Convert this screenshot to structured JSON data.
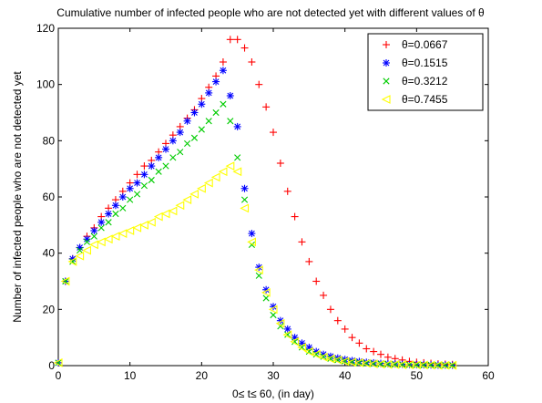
{
  "chart_data": {
    "type": "scatter",
    "title": "Cumulative number of infected people who are not detected yet with different values of θ",
    "xlabel": "0≤ t≤ 60, (in day)",
    "ylabel": "Number of infected people who are not detected yet",
    "xlim": [
      0,
      60
    ],
    "ylim": [
      0,
      120
    ],
    "xticks": [
      0,
      10,
      20,
      30,
      40,
      50,
      60
    ],
    "yticks": [
      0,
      20,
      40,
      60,
      80,
      100,
      120
    ],
    "grid": false,
    "legend_position": "top-right",
    "series": [
      {
        "name": "θ=0.0667",
        "marker": "plus",
        "color": "#ff0000",
        "x": [
          0,
          1,
          2,
          3,
          4,
          5,
          6,
          7,
          8,
          9,
          10,
          11,
          12,
          13,
          14,
          15,
          16,
          17,
          18,
          19,
          20,
          21,
          22,
          23,
          24,
          25,
          26,
          27,
          28,
          29,
          30,
          31,
          32,
          33,
          34,
          35,
          36,
          37,
          38,
          39,
          40,
          41,
          42,
          43,
          44,
          45,
          46,
          47,
          48,
          49,
          50,
          51,
          52,
          53,
          54,
          55
        ],
        "values": [
          1,
          30,
          38,
          42,
          46,
          49,
          53,
          56,
          59,
          62,
          65,
          68,
          71,
          73,
          76,
          79,
          82,
          85,
          88,
          91,
          95,
          99,
          103,
          108,
          116,
          116,
          113,
          108,
          100,
          92,
          83,
          72,
          62,
          53,
          44,
          37,
          30,
          25,
          20,
          16,
          13,
          10,
          8,
          6,
          5,
          4,
          3,
          2.5,
          2,
          1.5,
          1.2,
          1,
          0.8,
          0.6,
          0.5,
          0.4
        ]
      },
      {
        "name": "θ=0.1515",
        "marker": "star",
        "color": "#0000ff",
        "x": [
          0,
          1,
          2,
          3,
          4,
          5,
          6,
          7,
          8,
          9,
          10,
          11,
          12,
          13,
          14,
          15,
          16,
          17,
          18,
          19,
          20,
          21,
          22,
          23,
          24,
          25,
          26,
          27,
          28,
          29,
          30,
          31,
          32,
          33,
          34,
          35,
          36,
          37,
          38,
          39,
          40,
          41,
          42,
          43,
          44,
          45,
          46,
          47,
          48,
          49,
          50,
          51,
          52,
          53,
          54,
          55
        ],
        "values": [
          1,
          30,
          38,
          42,
          45,
          48,
          51,
          54,
          57,
          60,
          63,
          65,
          68,
          71,
          74,
          77,
          80,
          83,
          87,
          90,
          93,
          97,
          101,
          105,
          96,
          85,
          63,
          47,
          35,
          27,
          21,
          16,
          13,
          10,
          8,
          6.5,
          5,
          4,
          3.3,
          2.7,
          2.2,
          1.8,
          1.5,
          1.2,
          1,
          0.8,
          0.7,
          0.6,
          0.5,
          0.4,
          0.35,
          0.3,
          0.25,
          0.2,
          0.2,
          0.15
        ]
      },
      {
        "name": "θ=0.3212",
        "marker": "x",
        "color": "#00cc00",
        "x": [
          0,
          1,
          2,
          3,
          4,
          5,
          6,
          7,
          8,
          9,
          10,
          11,
          12,
          13,
          14,
          15,
          16,
          17,
          18,
          19,
          20,
          21,
          22,
          23,
          24,
          25,
          26,
          27,
          28,
          29,
          30,
          31,
          32,
          33,
          34,
          35,
          36,
          37,
          38,
          39,
          40,
          41,
          42,
          43,
          44,
          45,
          46,
          47,
          48,
          49,
          50,
          51,
          52,
          53,
          54,
          55
        ],
        "values": [
          1,
          30,
          37,
          41,
          44,
          46,
          49,
          51,
          54,
          56,
          59,
          61,
          64,
          66,
          69,
          71,
          74,
          76,
          79,
          81,
          84,
          87,
          90,
          93,
          87,
          74,
          59,
          43,
          32,
          24,
          18,
          14,
          11,
          8.5,
          6.5,
          5,
          4,
          3.2,
          2.5,
          2,
          1.6,
          1.3,
          1,
          0.8,
          0.7,
          0.6,
          0.5,
          0.4,
          0.35,
          0.3,
          0.25,
          0.2,
          0.2,
          0.15,
          0.1,
          0.1
        ]
      },
      {
        "name": "θ=0.7455",
        "marker": "triangle-left",
        "color": "#ffff00",
        "x": [
          0,
          1,
          2,
          3,
          4,
          5,
          6,
          7,
          8,
          9,
          10,
          11,
          12,
          13,
          14,
          15,
          16,
          17,
          18,
          19,
          20,
          21,
          22,
          23,
          24,
          25,
          26,
          27,
          28,
          29,
          30,
          31,
          32,
          33,
          34,
          35,
          36,
          37,
          38,
          39,
          40,
          41,
          42,
          43,
          44,
          45,
          46,
          47,
          48,
          49,
          50,
          51,
          52,
          53,
          54,
          55
        ],
        "values": [
          1,
          30,
          37,
          39,
          41,
          43,
          44,
          45,
          46,
          47,
          48,
          49,
          50,
          51,
          53,
          54,
          55,
          57,
          59,
          61,
          63,
          65,
          67,
          69,
          71,
          69,
          56,
          44,
          34,
          26,
          20,
          15,
          11,
          8.5,
          6.5,
          5,
          4,
          3,
          2.4,
          2,
          1.5,
          1.2,
          1,
          0.8,
          0.6,
          0.5,
          0.4,
          0.35,
          0.3,
          0.25,
          0.2,
          0.2,
          0.15,
          0.1,
          0.1,
          0.1
        ]
      }
    ]
  }
}
